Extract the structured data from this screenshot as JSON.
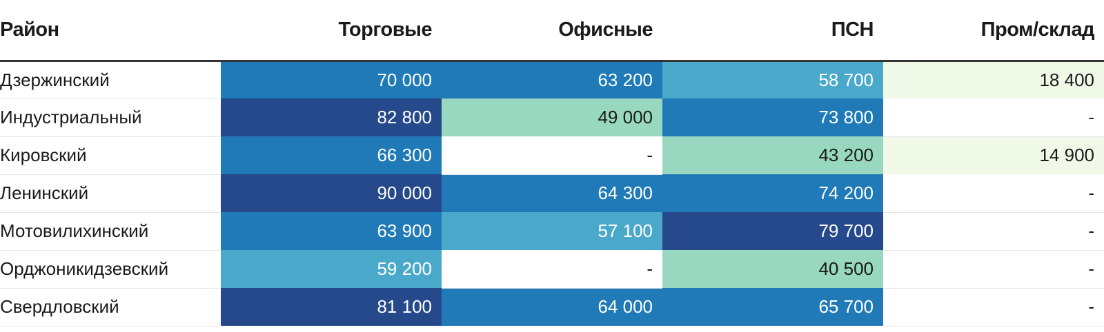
{
  "chart_data": {
    "type": "table",
    "columns": [
      "Район",
      "Торговые",
      "Офисные",
      "ПСН",
      "Пром/склад"
    ],
    "rows": [
      {
        "district": "Дзержинский",
        "values": [
          "70 000",
          "63 200",
          "58 700",
          "18 400"
        ]
      },
      {
        "district": "Индустриальный",
        "values": [
          "82 800",
          "49 000",
          "73 800",
          "-"
        ]
      },
      {
        "district": "Кировский",
        "values": [
          "66 300",
          "-",
          "43 200",
          "14 900"
        ]
      },
      {
        "district": "Ленинский",
        "values": [
          "90 000",
          "64 300",
          "74 200",
          "-"
        ]
      },
      {
        "district": "Мотовилихинский",
        "values": [
          "63 900",
          "57 100",
          "79 700",
          "-"
        ]
      },
      {
        "district": "Орджоникидзевский",
        "values": [
          "59 200",
          "-",
          "40 500",
          "-"
        ]
      },
      {
        "district": "Свердловский",
        "values": [
          "81 100",
          "64 000",
          "65 700",
          "-"
        ]
      }
    ],
    "numeric_values": [
      [
        70000,
        63200,
        58700,
        18400
      ],
      [
        82800,
        49000,
        73800,
        null
      ],
      [
        66300,
        null,
        43200,
        14900
      ],
      [
        90000,
        64300,
        74200,
        null
      ],
      [
        63900,
        57100,
        79700,
        null
      ],
      [
        59200,
        null,
        40500,
        null
      ],
      [
        81100,
        64000,
        65700,
        null
      ]
    ],
    "color_scale": [
      {
        "min": 0,
        "bg": "#f0f9e8",
        "fg": "#1a1a1a"
      },
      {
        "min": 40000,
        "bg": "#98d7c0",
        "fg": "#1a1a1a"
      },
      {
        "min": 55000,
        "bg": "#4aa8cb",
        "fg": "#ffffff"
      },
      {
        "min": 60000,
        "bg": "#1f7ab7",
        "fg": "#ffffff"
      },
      {
        "min": 75000,
        "bg": "#25498b",
        "fg": "#ffffff"
      }
    ],
    "empty_color": "#ffffff"
  }
}
